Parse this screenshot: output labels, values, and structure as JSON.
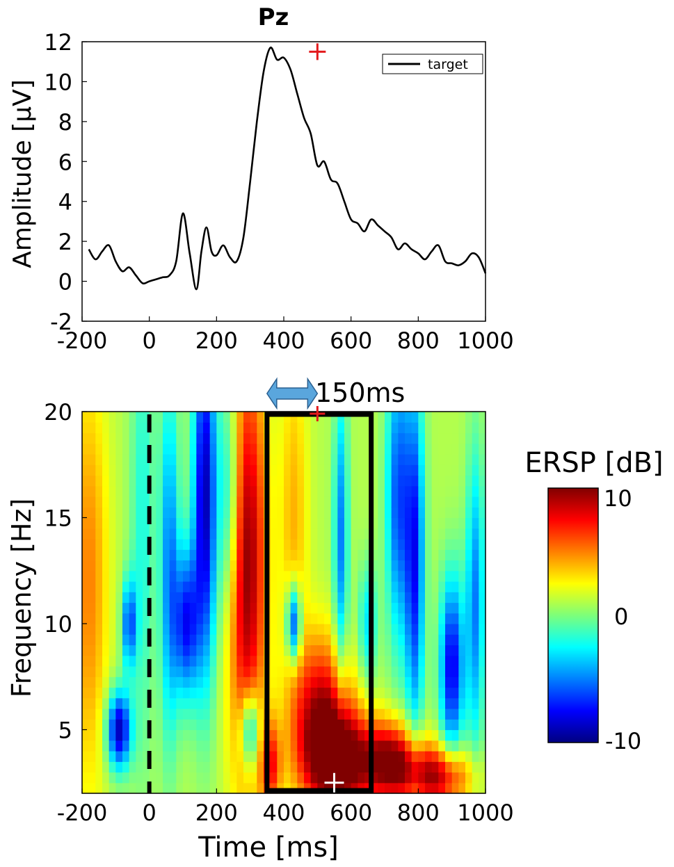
{
  "colors": {
    "erp_line": "#000000",
    "peak_marker": "#e31a1c",
    "white_marker": "#ffffff",
    "arrow": "#5aa6dd",
    "frame": "#000000"
  },
  "chart_data": [
    {
      "type": "line",
      "title": "Pz",
      "xlabel": "",
      "ylabel": "Amplitude [μV]",
      "xlim": [
        -200,
        1000
      ],
      "ylim": [
        -2,
        12
      ],
      "xticks": [
        "-200",
        "0",
        "200",
        "400",
        "600",
        "800",
        "1000"
      ],
      "yticks": [
        "-2",
        "0",
        "2",
        "4",
        "6",
        "8",
        "10",
        "12"
      ],
      "legend": {
        "position": "top-right",
        "entries": [
          "target"
        ]
      },
      "series": [
        {
          "name": "target",
          "x": [
            -180,
            -160,
            -140,
            -120,
            -100,
            -80,
            -60,
            -40,
            -20,
            0,
            20,
            40,
            60,
            80,
            100,
            120,
            140,
            155,
            170,
            185,
            200,
            220,
            240,
            260,
            280,
            300,
            320,
            340,
            360,
            380,
            400,
            420,
            440,
            460,
            480,
            500,
            520,
            540,
            560,
            580,
            600,
            620,
            640,
            660,
            680,
            700,
            720,
            740,
            760,
            780,
            800,
            820,
            840,
            860,
            880,
            900,
            920,
            940,
            960,
            980,
            1000
          ],
          "y": [
            1.6,
            1.1,
            1.5,
            1.8,
            1.0,
            0.5,
            0.7,
            0.3,
            -0.1,
            0.0,
            0.1,
            0.2,
            0.3,
            1.0,
            3.4,
            1.4,
            -0.4,
            1.5,
            2.7,
            1.5,
            1.3,
            1.8,
            1.2,
            1.0,
            2.2,
            5.0,
            8.0,
            10.5,
            11.7,
            11.1,
            11.2,
            10.6,
            9.4,
            8.2,
            7.4,
            5.8,
            6.0,
            5.1,
            4.9,
            4.0,
            3.1,
            2.9,
            2.5,
            3.1,
            2.8,
            2.5,
            2.2,
            1.6,
            1.9,
            1.6,
            1.4,
            1.1,
            1.5,
            1.8,
            1.0,
            0.9,
            0.8,
            1.0,
            1.4,
            1.2,
            0.4
          ]
        }
      ],
      "peak_marker": {
        "x": 500,
        "y": 11.5
      }
    },
    {
      "type": "heatmap",
      "title": "",
      "xlabel": "Time [ms]",
      "ylabel": "Frequency [Hz]",
      "xlim": [
        -200,
        1000
      ],
      "ylim": [
        2,
        20
      ],
      "xticks": [
        "-200",
        "0",
        "200",
        "400",
        "600",
        "800",
        "1000"
      ],
      "yticks": [
        "5",
        "10",
        "15",
        "20"
      ],
      "cell_time_ms": 20,
      "cell_freq_hz": 0.5,
      "stimulus_onset_ms": 0,
      "highlight_window": {
        "start_ms": 350,
        "end_ms": 660
      },
      "window_annotation": "150ms",
      "annotation_arrow_ms": [
        350,
        500
      ],
      "peak_marker": {
        "x": 500,
        "y": 20
      },
      "power_peak_marker": {
        "x": 550,
        "y": 2.5
      },
      "blobs": [
        {
          "t": -180,
          "f": 12,
          "st": 40,
          "sf": 7,
          "v": 4
        },
        {
          "t": -90,
          "f": 5,
          "st": 25,
          "sf": 1.3,
          "v": -10
        },
        {
          "t": -60,
          "f": 10,
          "st": 15,
          "sf": 1.5,
          "v": -7
        },
        {
          "t": -20,
          "f": 15,
          "st": 25,
          "sf": 8,
          "v": -3
        },
        {
          "t": 60,
          "f": 13,
          "st": 20,
          "sf": 6,
          "v": -6
        },
        {
          "t": 110,
          "f": 10,
          "st": 25,
          "sf": 2.5,
          "v": -8
        },
        {
          "t": 165,
          "f": 16,
          "st": 25,
          "sf": 6,
          "v": -10
        },
        {
          "t": 240,
          "f": 16,
          "st": 25,
          "sf": 4,
          "v": -5
        },
        {
          "t": 290,
          "f": 13,
          "st": 40,
          "sf": 7,
          "v": 9
        },
        {
          "t": 300,
          "f": 5,
          "st": 20,
          "sf": 1.3,
          "v": -7
        },
        {
          "t": 360,
          "f": 3.3,
          "st": 22,
          "sf": 1.5,
          "v": 6
        },
        {
          "t": 430,
          "f": 10,
          "st": 15,
          "sf": 1.3,
          "v": -9
        },
        {
          "t": 430,
          "f": 15,
          "st": 30,
          "sf": 6,
          "v": 3
        },
        {
          "t": 510,
          "f": 6,
          "st": 60,
          "sf": 2.5,
          "v": 7
        },
        {
          "t": 560,
          "f": 3.5,
          "st": 70,
          "sf": 1.8,
          "v": 10
        },
        {
          "t": 570,
          "f": 14,
          "st": 15,
          "sf": 5,
          "v": -6
        },
        {
          "t": 650,
          "f": 10,
          "st": 20,
          "sf": 2,
          "v": -4
        },
        {
          "t": 720,
          "f": 3.5,
          "st": 60,
          "sf": 1.3,
          "v": 9
        },
        {
          "t": 740,
          "f": 16,
          "st": 25,
          "sf": 5,
          "v": -7
        },
        {
          "t": 790,
          "f": 13,
          "st": 20,
          "sf": 6,
          "v": -8
        },
        {
          "t": 860,
          "f": 2.8,
          "st": 70,
          "sf": 1.0,
          "v": 8
        },
        {
          "t": 900,
          "f": 8,
          "st": 25,
          "sf": 3,
          "v": -9
        },
        {
          "t": 970,
          "f": 11,
          "st": 20,
          "sf": 5,
          "v": -6
        }
      ],
      "colorbar": {
        "title": "ERSP [dB]",
        "range": [
          -10,
          10
        ],
        "ticks": [
          "10",
          "0",
          "-10"
        ],
        "colormap": "jet"
      }
    }
  ]
}
